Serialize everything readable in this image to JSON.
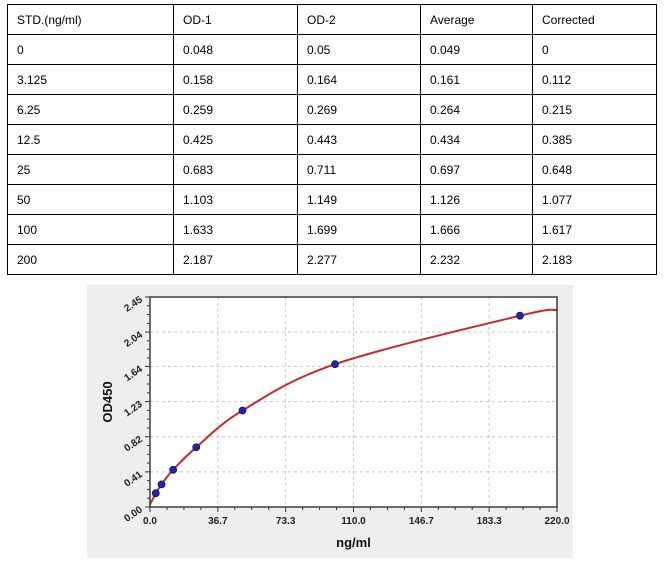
{
  "table": {
    "columns": [
      "STD.(ng/ml)",
      "OD-1",
      "OD-2",
      "Average",
      "Corrected"
    ],
    "rows": [
      [
        "0",
        "0.048",
        "0.05",
        "0.049",
        "0"
      ],
      [
        "3.125",
        "0.158",
        "0.164",
        "0.161",
        "0.112"
      ],
      [
        "6.25",
        "0.259",
        "0.269",
        "0.264",
        "0.215"
      ],
      [
        "12.5",
        "0.425",
        "0.443",
        "0.434",
        "0.385"
      ],
      [
        "25",
        "0.683",
        "0.711",
        "0.697",
        "0.648"
      ],
      [
        "50",
        "1.103",
        "1.149",
        "1.126",
        "1.077"
      ],
      [
        "100",
        "1.633",
        "1.699",
        "1.666",
        "1.617"
      ],
      [
        "200",
        "2.187",
        "2.277",
        "2.232",
        "2.183"
      ]
    ]
  },
  "chart_data": {
    "type": "scatter",
    "title": "",
    "xlabel": "ng/ml",
    "ylabel": "OD450",
    "xlim": [
      0,
      220
    ],
    "ylim": [
      0,
      2.45
    ],
    "x_tick_values": [
      0,
      36.67,
      73.33,
      110,
      146.67,
      183.33,
      220
    ],
    "x_tick_labels": [
      "0.0",
      "36.7",
      "73.3",
      "110.0",
      "146.7",
      "183.3",
      "220.0"
    ],
    "y_tick_values": [
      0,
      0.41,
      0.82,
      1.23,
      1.64,
      2.04,
      2.45
    ],
    "y_tick_labels": [
      "0.00",
      "0.41",
      "0.82",
      "1.23",
      "1.64",
      "2.04",
      "2.45"
    ],
    "minor_ticks_per_interval": 3,
    "grid": "dashed-major",
    "legend": null,
    "series": [
      {
        "name": "Fitted standard curve",
        "kind": "line",
        "x": [
          0,
          3.125,
          6.25,
          12.5,
          25,
          50,
          100,
          200,
          220
        ],
        "y": [
          0.03,
          0.161,
          0.264,
          0.434,
          0.697,
          1.126,
          1.666,
          2.232,
          2.3
        ],
        "color": "#cc2a2a"
      },
      {
        "name": "Standards (Average OD450)",
        "kind": "scatter",
        "x": [
          3.125,
          6.25,
          12.5,
          25,
          50,
          100,
          200
        ],
        "y": [
          0.161,
          0.264,
          0.434,
          0.697,
          1.126,
          1.666,
          2.232
        ],
        "color": "#2424ad",
        "edge_color": "#15157d"
      }
    ],
    "colors": {
      "panel": "#eeeeee",
      "plot_bg": "#ffffff",
      "border": "#3f3f3f",
      "grid": "#c6c6c6",
      "tick": "#333333"
    }
  }
}
